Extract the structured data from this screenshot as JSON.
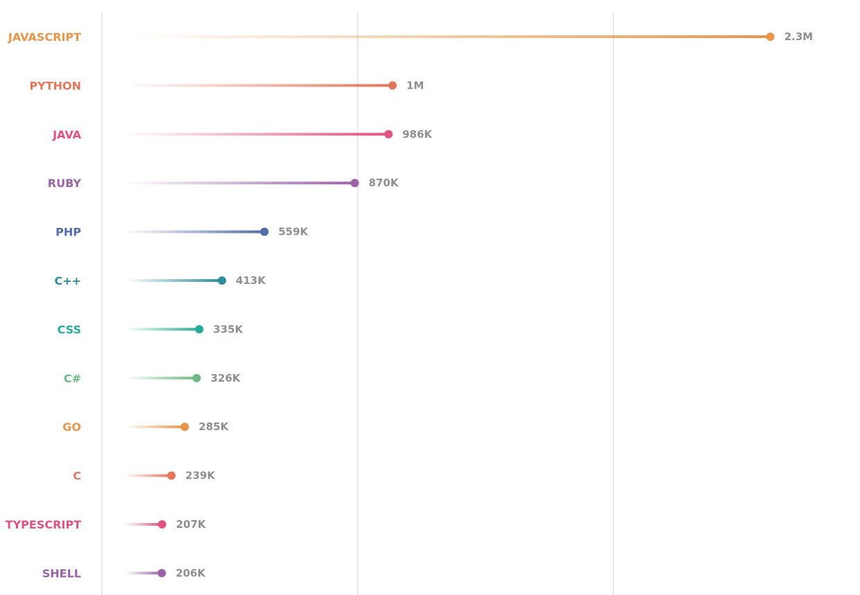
{
  "chart_data": {
    "type": "lollipop",
    "xlim": [
      0,
      2500000
    ],
    "grid": true,
    "categories": [
      "JAVASCRIPT",
      "PYTHON",
      "JAVA",
      "RUBY",
      "PHP",
      "C++",
      "CSS",
      "C#",
      "GO",
      "C",
      "TYPESCRIPT",
      "SHELL"
    ],
    "values": [
      2300000,
      1000000,
      986000,
      870000,
      559000,
      413000,
      335000,
      326000,
      285000,
      239000,
      207000,
      206000
    ],
    "value_labels": [
      "2.3M",
      "1M",
      "986K",
      "870K",
      "559K",
      "413K",
      "335K",
      "326K",
      "285K",
      "239K",
      "207K",
      "206K"
    ],
    "colors": [
      "#e8954a",
      "#e3755a",
      "#df5282",
      "#9b62a8",
      "#4f6ca8",
      "#2b8d9e",
      "#25ab96",
      "#6db883",
      "#e8954a",
      "#e3755a",
      "#df5282",
      "#9b62a8"
    ]
  }
}
